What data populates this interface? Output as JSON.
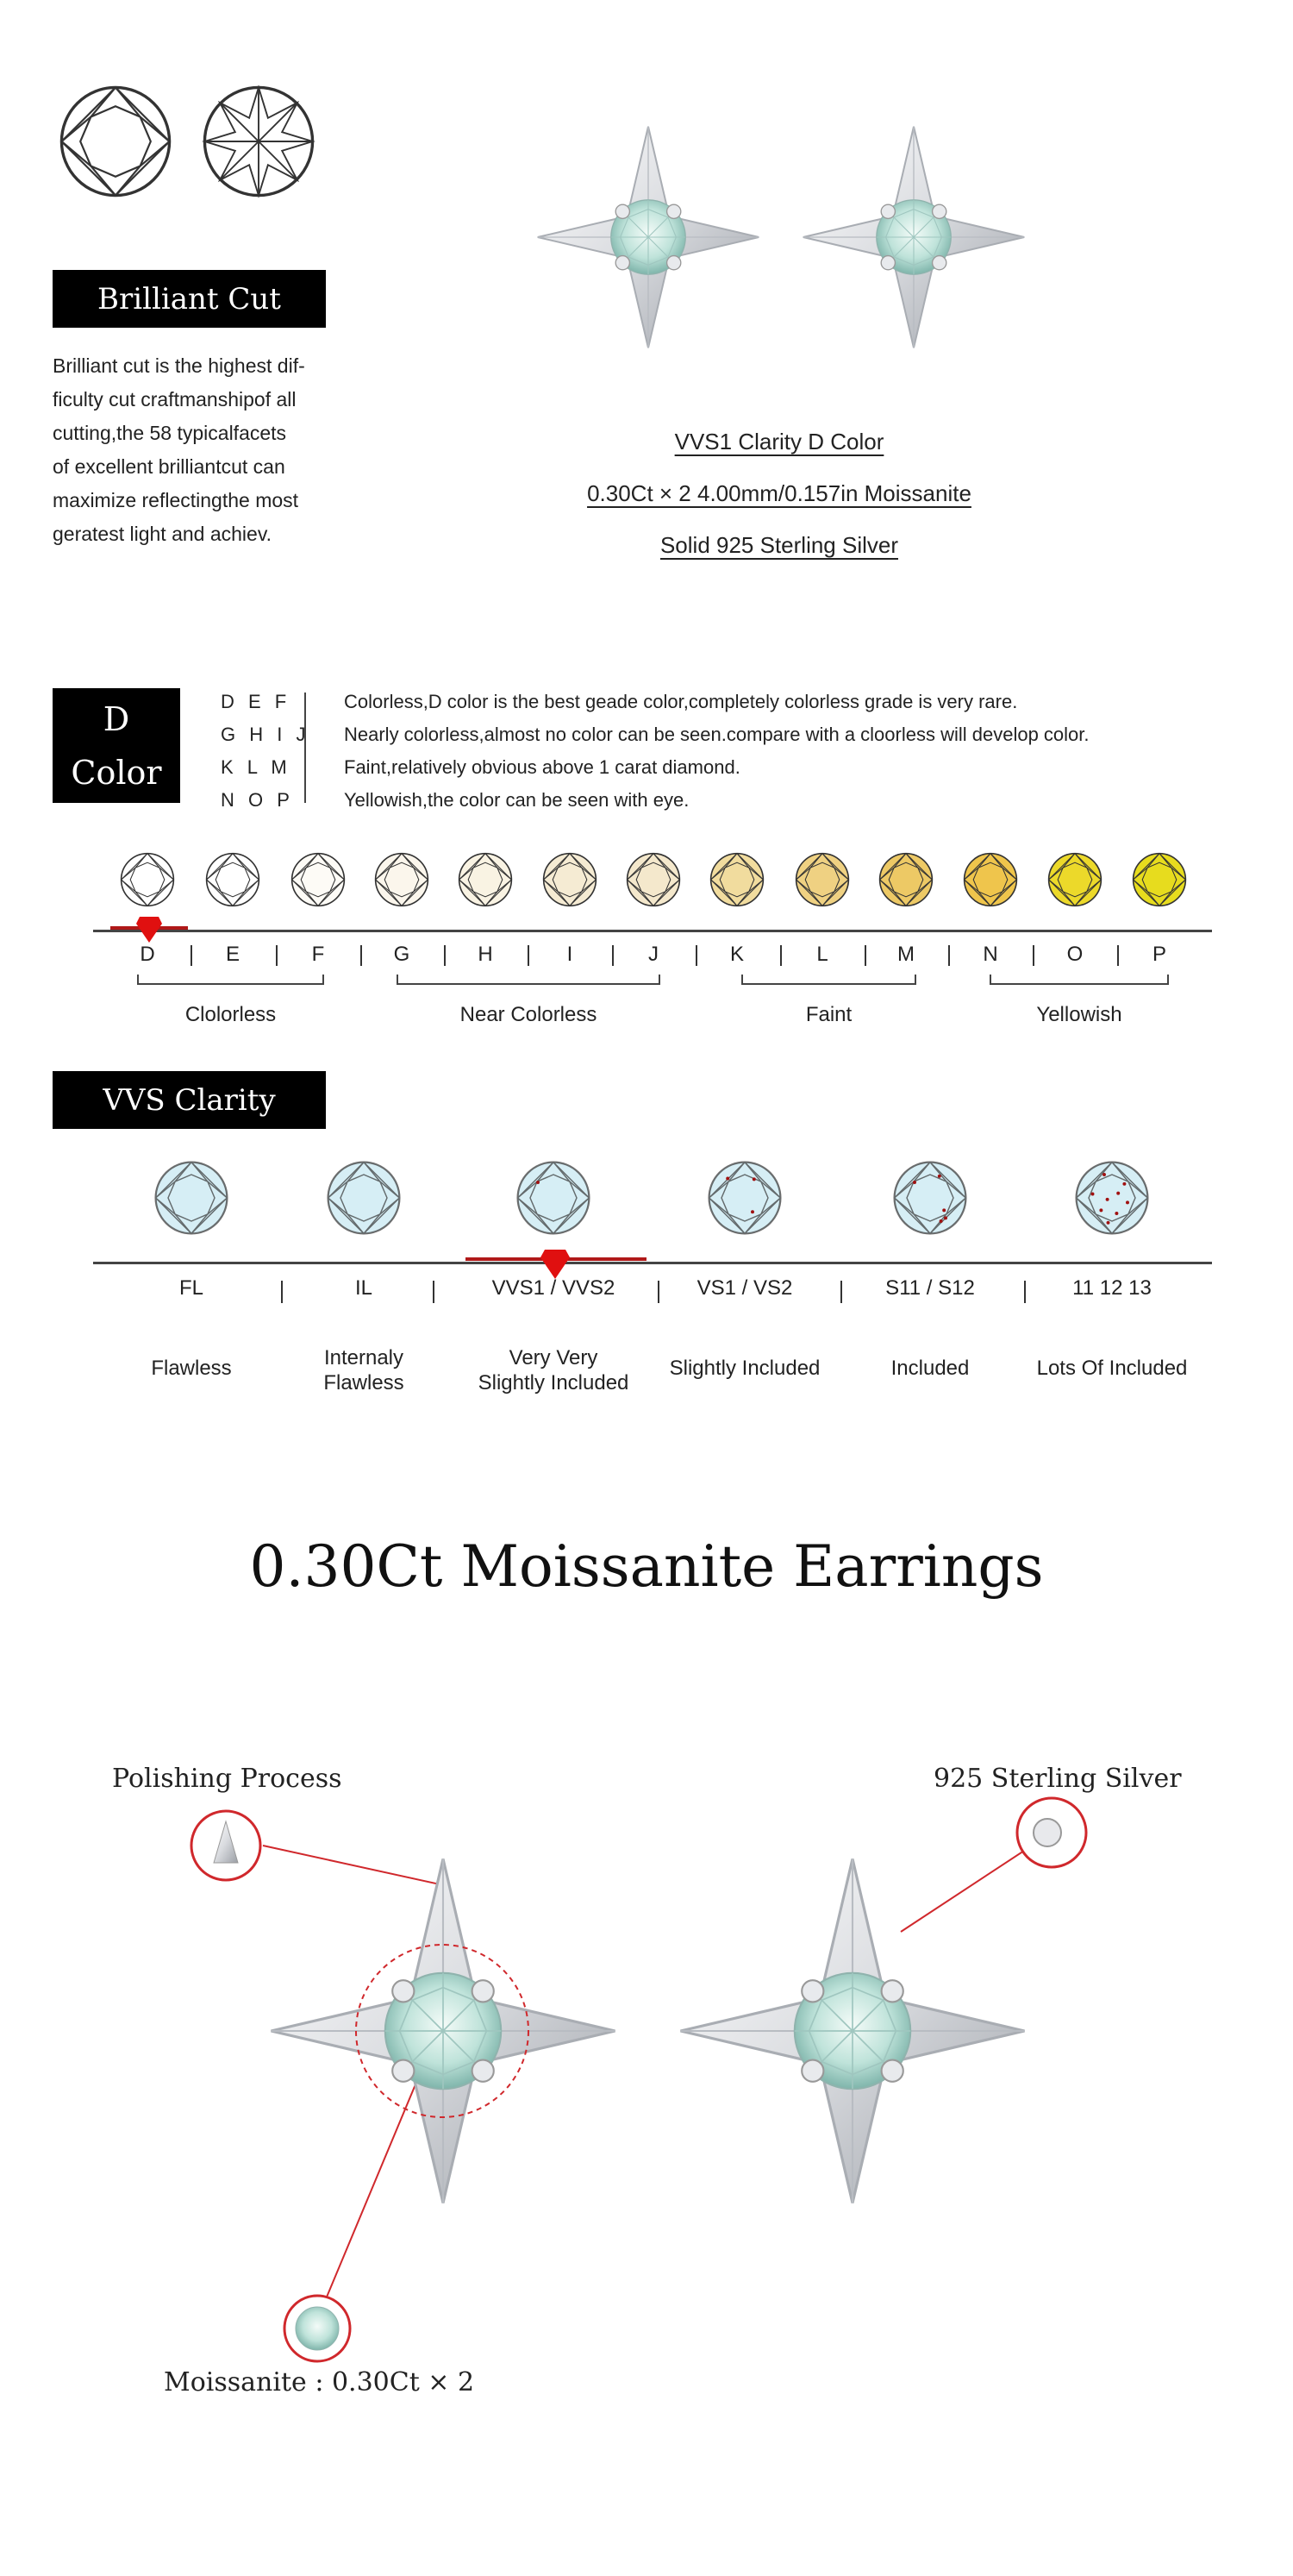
{
  "brilliant_cut": {
    "title": "Brilliant Cut",
    "description_lines": [
      "Brilliant cut is the highest dif-",
      "ficulty cut craftmanshipof all",
      "cutting,the 58 typicalfacets",
      "of excellent brilliantcut can",
      "maximize reflectingthe most",
      "geratest light and achiev."
    ]
  },
  "specs": {
    "line1": "VVS1 Clarity D Color",
    "line2": "0.30Ct × 2  4.00mm/0.157in Moissanite",
    "line3": "Solid 925 Sterling Silver"
  },
  "color_section": {
    "title_line1": "D",
    "title_line2": "Color",
    "grades": [
      {
        "letters": "D E F",
        "text": "Colorless,D color is the best geade color,completely colorless grade is very rare."
      },
      {
        "letters": "G H I J",
        "text": "Nearly colorless,almost no color can be seen.compare with a cloorless will develop color."
      },
      {
        "letters": "K L M",
        "text": "Faint,relatively obvious above 1 carat diamond."
      },
      {
        "letters": "N O P",
        "text": "Yellowish,the color can be seen with eye."
      }
    ],
    "scale": [
      {
        "letter": "D",
        "color": "#ffffff"
      },
      {
        "letter": "E",
        "color": "#ffffff"
      },
      {
        "letter": "F",
        "color": "#fdfbf6"
      },
      {
        "letter": "G",
        "color": "#fbf6ec"
      },
      {
        "letter": "H",
        "color": "#f9f3e3"
      },
      {
        "letter": "I",
        "color": "#f5ebd3"
      },
      {
        "letter": "J",
        "color": "#f4e8cc"
      },
      {
        "letter": "K",
        "color": "#f1dc9e"
      },
      {
        "letter": "L",
        "color": "#efd182"
      },
      {
        "letter": "M",
        "color": "#edc965"
      },
      {
        "letter": "N",
        "color": "#efc54c"
      },
      {
        "letter": "O",
        "color": "#ecd92a"
      },
      {
        "letter": "P",
        "color": "#e7dc1e"
      }
    ],
    "selected": "D",
    "groups": [
      "Clolorless",
      "Near Colorless",
      "Faint",
      "Yellowish"
    ],
    "marker_color": "#e01010"
  },
  "clarity_section": {
    "title": "VVS Clarity",
    "grades": [
      {
        "label": "FL",
        "desc": [
          "Flawless"
        ],
        "inclusions": 0
      },
      {
        "label": "IL",
        "desc": [
          "Internaly",
          "Flawless"
        ],
        "inclusions": 0
      },
      {
        "label": "VVS1 / VVS2",
        "desc": [
          "Very Very",
          "Slightly Included"
        ],
        "inclusions": 1
      },
      {
        "label": "VS1 / VS2",
        "desc": [
          "Slightly Included"
        ],
        "inclusions": 3
      },
      {
        "label": "S11 / S12",
        "desc": [
          "Included"
        ],
        "inclusions": 5
      },
      {
        "label": "11 12 13",
        "desc": [
          "Lots Of Included"
        ],
        "inclusions": 9
      }
    ],
    "selected": "VVS1 / VVS2",
    "gem_color": "#d6eef5"
  },
  "product_title": "0.30Ct Moissanite Earrings",
  "callouts": {
    "polishing": "Polishing Process",
    "silver": "925 Sterling Silver",
    "moissanite": "Moissanite : 0.30Ct × 2"
  },
  "accent_red": "#d0282c"
}
